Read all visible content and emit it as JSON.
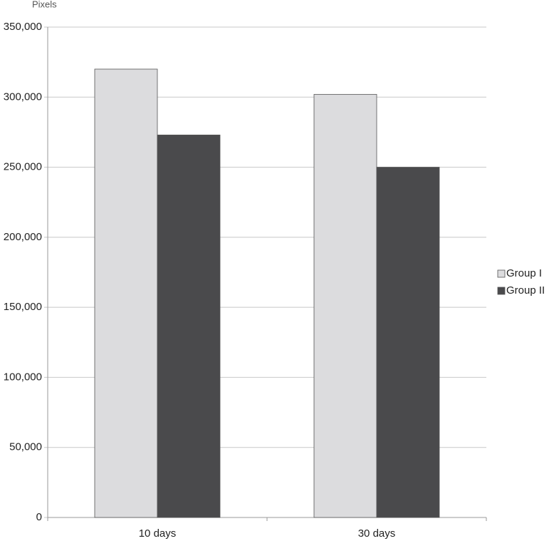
{
  "chart_data": {
    "type": "bar",
    "y_axis_label": "Pixels",
    "categories": [
      "10 days",
      "30 days"
    ],
    "series": [
      {
        "name": "Group I",
        "color": "#dcdcde",
        "values": [
          320000,
          302000
        ]
      },
      {
        "name": "Group II",
        "color": "#4a4a4c",
        "values": [
          273000,
          250000
        ]
      }
    ],
    "ylim": [
      0,
      350000
    ],
    "yticks": [
      0,
      {
        "value": 50000,
        "label": "50,000"
      },
      {
        "value": 100000,
        "label": "100,000"
      },
      {
        "value": 150000,
        "label": "150,000"
      },
      {
        "value": 200000,
        "label": "200,000"
      },
      {
        "value": 250000,
        "label": "250,000"
      },
      {
        "value": 300000,
        "label": "300,000"
      },
      {
        "value": 350000,
        "label": "350,000"
      }
    ],
    "grid": true,
    "legend": "right"
  }
}
